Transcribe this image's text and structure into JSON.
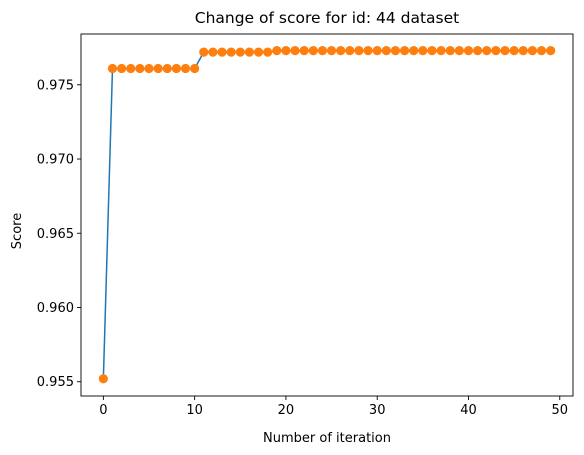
{
  "chart_data": {
    "type": "line",
    "title": "Change of score for id: 44 dataset",
    "xlabel": "Number of iteration",
    "ylabel": "Score",
    "xlim": [
      -2.45,
      51.45
    ],
    "ylim": [
      0.95404,
      0.97842
    ],
    "xticks": [
      0,
      10,
      20,
      30,
      40,
      50
    ],
    "yticks": [
      0.955,
      0.96,
      0.965,
      0.97,
      0.975
    ],
    "ytick_labels": [
      "0.955",
      "0.960",
      "0.965",
      "0.970",
      "0.975"
    ],
    "grid": false,
    "colors": {
      "line": "#1f77b4",
      "markers": "#ff7f0e"
    },
    "series": [
      {
        "x": [
          0,
          1,
          2,
          3,
          4,
          5,
          6,
          7,
          8,
          9,
          10,
          11,
          12,
          13,
          14,
          15,
          16,
          17,
          18,
          19,
          20,
          21,
          22,
          23,
          24,
          25,
          26,
          27,
          28,
          29,
          30,
          31,
          32,
          33,
          34,
          35,
          36,
          37,
          38,
          39,
          40,
          41,
          42,
          43,
          44,
          45,
          46,
          47,
          48,
          49
        ],
        "y": [
          0.9552,
          0.9761,
          0.9761,
          0.9761,
          0.9761,
          0.9761,
          0.9761,
          0.9761,
          0.9761,
          0.9761,
          0.9761,
          0.9772,
          0.9772,
          0.9772,
          0.9772,
          0.9772,
          0.9772,
          0.9772,
          0.9772,
          0.9773,
          0.9773,
          0.9773,
          0.9773,
          0.9773,
          0.9773,
          0.9773,
          0.9773,
          0.9773,
          0.9773,
          0.9773,
          0.9773,
          0.9773,
          0.9773,
          0.9773,
          0.9773,
          0.9773,
          0.9773,
          0.9773,
          0.9773,
          0.9773,
          0.9773,
          0.9773,
          0.9773,
          0.9773,
          0.9773,
          0.9773,
          0.9773,
          0.9773,
          0.9773,
          0.9773
        ]
      }
    ]
  }
}
